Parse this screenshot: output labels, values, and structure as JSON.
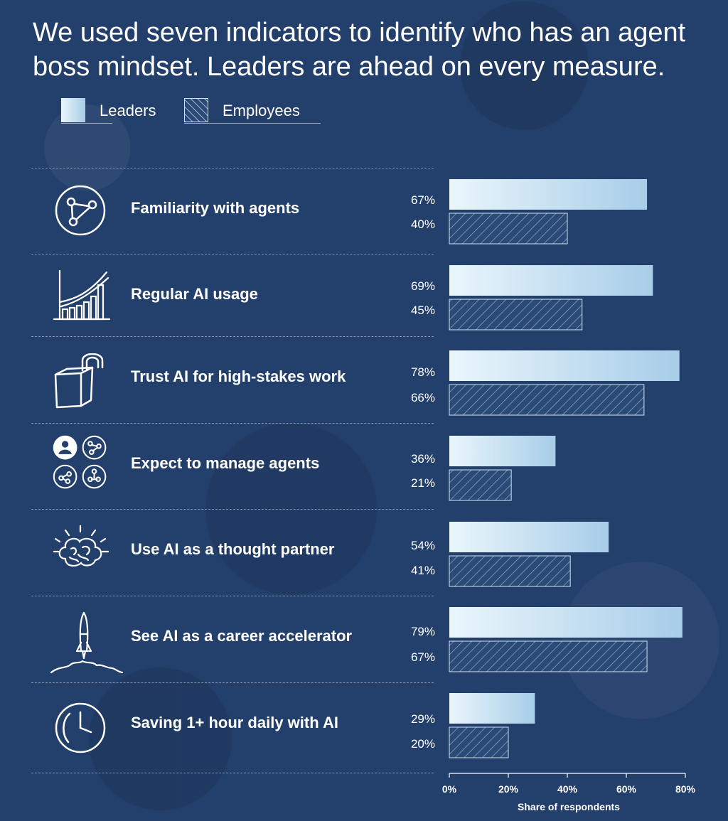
{
  "title": "We used seven indicators to identify who has an agent boss mindset. Leaders are ahead on every measure.",
  "legend": {
    "leaders": "Leaders",
    "employees": "Employees"
  },
  "colors": {
    "background": "#233f6b",
    "leaders_start": "#eaf6fc",
    "leaders_end": "#a7cde8",
    "employees_fill": "#2a4a78",
    "employees_border": "#cfe3f3"
  },
  "indicators": [
    {
      "label": "Familiarity with agents",
      "icon": "network-circle-icon",
      "leaders_text": "67%",
      "employees_text": "40%"
    },
    {
      "label": "Regular AI usage",
      "icon": "growth-chart-icon",
      "leaders_text": "69%",
      "employees_text": "45%"
    },
    {
      "label": "Trust AI for high-stakes work",
      "icon": "open-padlock-icon",
      "leaders_text": "78%",
      "employees_text": "66%"
    },
    {
      "label": "Expect to manage agents",
      "icon": "team-of-agents-icon",
      "leaders_text": "36%",
      "employees_text": "21%"
    },
    {
      "label": "Use AI as a thought partner",
      "icon": "brain-icon",
      "leaders_text": "54%",
      "employees_text": "41%"
    },
    {
      "label": "See AI as a career accelerator",
      "icon": "rocket-icon",
      "leaders_text": "79%",
      "employees_text": "67%"
    },
    {
      "label": "Saving 1+ hour daily with AI",
      "icon": "clock-icon",
      "leaders_text": "29%",
      "employees_text": "20%"
    }
  ],
  "chart_data": {
    "type": "bar",
    "orientation": "horizontal",
    "categories": [
      "Familiarity with agents",
      "Regular AI usage",
      "Trust AI for high-stakes work",
      "Expect to manage agents",
      "Use AI as a thought partner",
      "See AI as a career accelerator",
      "Saving 1+ hour daily with AI"
    ],
    "series": [
      {
        "name": "Leaders",
        "values": [
          67,
          69,
          78,
          36,
          54,
          79,
          29
        ]
      },
      {
        "name": "Employees",
        "values": [
          40,
          45,
          66,
          21,
          41,
          67,
          20
        ]
      }
    ],
    "xlabel": "Share of respondents",
    "xlim": [
      0,
      80
    ],
    "xticks": [
      "0%",
      "20%",
      "40%",
      "60%",
      "80%"
    ],
    "grid": false,
    "legend_position": "top-left"
  }
}
